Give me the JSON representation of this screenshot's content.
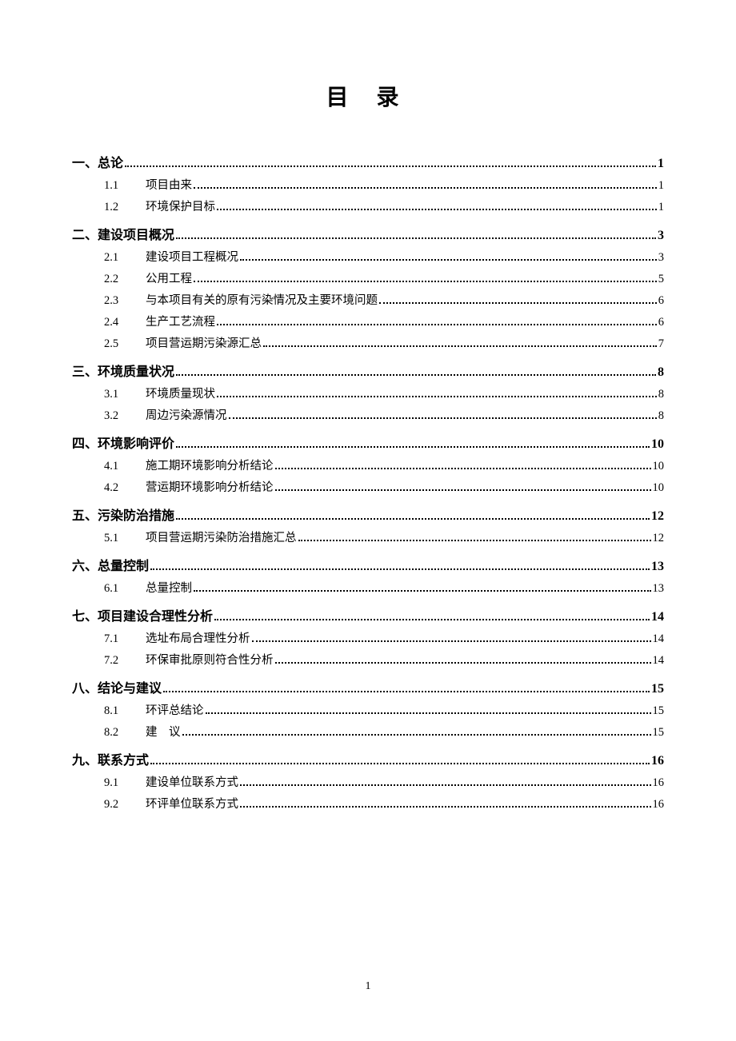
{
  "title": "目 录",
  "page_number": "1",
  "typography": {
    "title_fontsize": 28,
    "level1_fontsize": 16,
    "level2_fontsize": 14.5,
    "font_family": "SimSun",
    "text_color": "#000000",
    "background_color": "#ffffff"
  },
  "entries": [
    {
      "level": 1,
      "number": "一、",
      "label": "总论",
      "page": "1"
    },
    {
      "level": 2,
      "number": "1.1",
      "label": "项目由来",
      "page": "1"
    },
    {
      "level": 2,
      "number": "1.2",
      "label": "环境保护目标",
      "page": "1"
    },
    {
      "level": 1,
      "number": "二、",
      "label": "建设项目概况",
      "page": "3"
    },
    {
      "level": 2,
      "number": "2.1",
      "label": "建设项目工程概况",
      "page": "3"
    },
    {
      "level": 2,
      "number": "2.2",
      "label": "公用工程",
      "page": "5"
    },
    {
      "level": 2,
      "number": "2.3",
      "label": "与本项目有关的原有污染情况及主要环境问题",
      "page": "6"
    },
    {
      "level": 2,
      "number": "2.4",
      "label": "生产工艺流程",
      "page": "6"
    },
    {
      "level": 2,
      "number": "2.5",
      "label": "项目营运期污染源汇总",
      "page": "7"
    },
    {
      "level": 1,
      "number": "三、",
      "label": "环境质量状况",
      "page": "8"
    },
    {
      "level": 2,
      "number": "3.1",
      "label": "环境质量现状",
      "page": "8"
    },
    {
      "level": 2,
      "number": "3.2",
      "label": "周边污染源情况",
      "page": "8"
    },
    {
      "level": 1,
      "number": "四、",
      "label": "环境影响评价",
      "page": "10"
    },
    {
      "level": 2,
      "number": "4.1",
      "label": "施工期环境影响分析结论",
      "page": "10"
    },
    {
      "level": 2,
      "number": "4.2",
      "label": "营运期环境影响分析结论",
      "page": "10"
    },
    {
      "level": 1,
      "number": "五、",
      "label": "污染防治措施",
      "page": "12"
    },
    {
      "level": 2,
      "number": "5.1",
      "label": "项目营运期污染防治措施汇总",
      "page": "12"
    },
    {
      "level": 1,
      "number": "六、",
      "label": "总量控制",
      "page": "13"
    },
    {
      "level": 2,
      "number": "6.1",
      "label": "总量控制",
      "page": "13"
    },
    {
      "level": 1,
      "number": "七、",
      "label": "项目建设合理性分析",
      "page": "14"
    },
    {
      "level": 2,
      "number": "7.1",
      "label": "选址布局合理性分析",
      "page": "14"
    },
    {
      "level": 2,
      "number": "7.2",
      "label": "环保审批原则符合性分析",
      "page": "14"
    },
    {
      "level": 1,
      "number": "八、",
      "label": "结论与建议",
      "page": "15"
    },
    {
      "level": 2,
      "number": "8.1",
      "label": "环评总结论",
      "page": "15"
    },
    {
      "level": 2,
      "number": "8.2",
      "label": "建　议",
      "page": "15"
    },
    {
      "level": 1,
      "number": "九、",
      "label": "联系方式",
      "page": "16"
    },
    {
      "level": 2,
      "number": "9.1",
      "label": "建设单位联系方式",
      "page": "16"
    },
    {
      "level": 2,
      "number": "9.2",
      "label": "环评单位联系方式",
      "page": "16"
    }
  ]
}
